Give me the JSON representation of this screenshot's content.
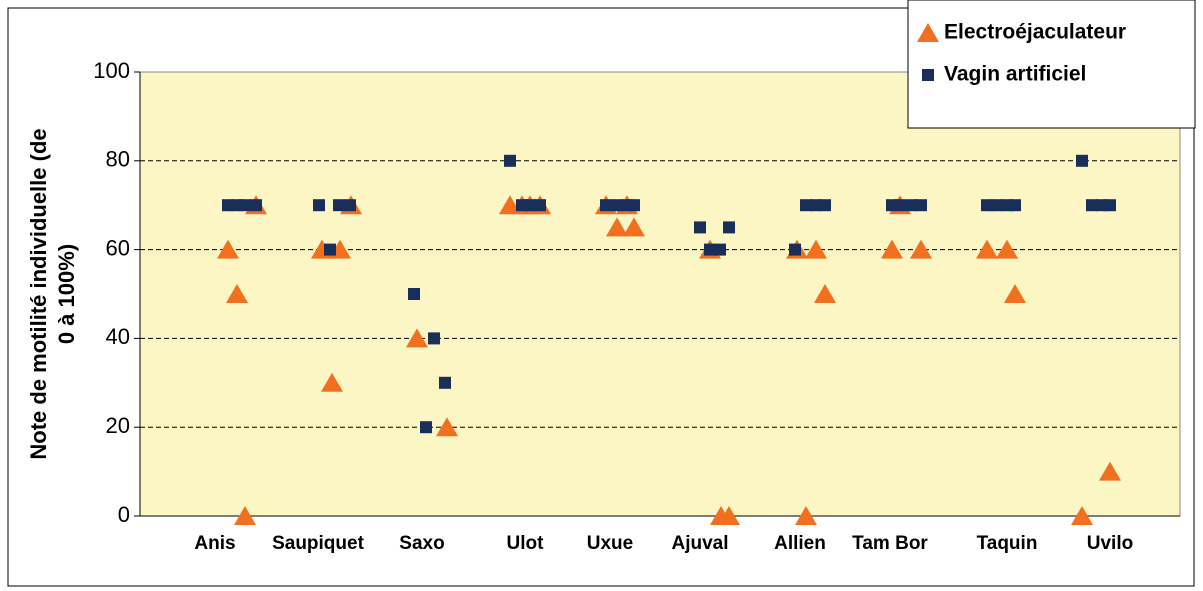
{
  "chart_data": {
    "type": "scatter",
    "ylabel": [
      "Note de motilité individuelle (de",
      "0 à 100%)"
    ],
    "xlim": [
      0,
      10.4
    ],
    "xticks": [
      {
        "value": 0.75,
        "label": "Anis"
      },
      {
        "value": 1.78,
        "label": "Saupiquet"
      },
      {
        "value": 2.82,
        "label": "Saxo"
      },
      {
        "value": 3.85,
        "label": "Ulot"
      },
      {
        "value": 4.7,
        "label": "Uxue"
      },
      {
        "value": 5.6,
        "label": "Ajuval"
      },
      {
        "value": 6.6,
        "label": "Allien"
      },
      {
        "value": 7.5,
        "label": "Tam Bor"
      },
      {
        "value": 8.67,
        "label": "Taquin"
      },
      {
        "value": 9.7,
        "label": "Uvilo"
      }
    ],
    "ylim": [
      0,
      100
    ],
    "yticks": [
      0,
      20,
      40,
      60,
      80,
      100
    ],
    "grid": true,
    "series": [
      {
        "name": "Electroéjaculateur",
        "color": "#f07020",
        "marker": "triangle",
        "x": [
          0.88,
          0.97,
          1.05,
          1.16,
          1.82,
          1.92,
          2.0,
          2.11,
          2.77,
          3.07,
          3.7,
          3.82,
          3.9,
          4.0,
          4.66,
          4.77,
          4.87,
          4.94,
          5.7,
          5.81,
          5.89,
          6.57,
          6.66,
          6.76,
          6.85,
          7.52,
          7.6,
          7.81,
          8.47,
          8.67,
          8.75,
          9.42,
          9.7
        ],
        "values": [
          60,
          50,
          0,
          70,
          60,
          30,
          60,
          70,
          40,
          20,
          70,
          70,
          70,
          70,
          70,
          65,
          70,
          65,
          60,
          0,
          0,
          60,
          0,
          60,
          50,
          60,
          70,
          60,
          60,
          60,
          50,
          0,
          10
        ]
      },
      {
        "name": "Vagin artificiel",
        "color": "#1a2e5a",
        "marker": "square",
        "x": [
          0.88,
          0.97,
          1.05,
          1.16,
          1.79,
          1.9,
          1.99,
          2.1,
          2.74,
          2.86,
          2.94,
          3.05,
          3.7,
          3.82,
          3.9,
          4.0,
          4.66,
          4.77,
          4.87,
          4.94,
          5.6,
          5.7,
          5.8,
          5.89,
          6.55,
          6.66,
          6.76,
          6.85,
          7.52,
          7.6,
          7.72,
          7.81,
          8.47,
          8.57,
          8.67,
          8.75,
          9.42,
          9.52,
          9.62,
          9.7
        ],
        "values": [
          70,
          70,
          70,
          70,
          70,
          60,
          70,
          70,
          50,
          20,
          40,
          30,
          80,
          70,
          70,
          70,
          70,
          70,
          70,
          70,
          65,
          60,
          60,
          65,
          60,
          70,
          70,
          70,
          70,
          70,
          70,
          70,
          70,
          70,
          70,
          70,
          80,
          70,
          70,
          70
        ]
      }
    ]
  }
}
